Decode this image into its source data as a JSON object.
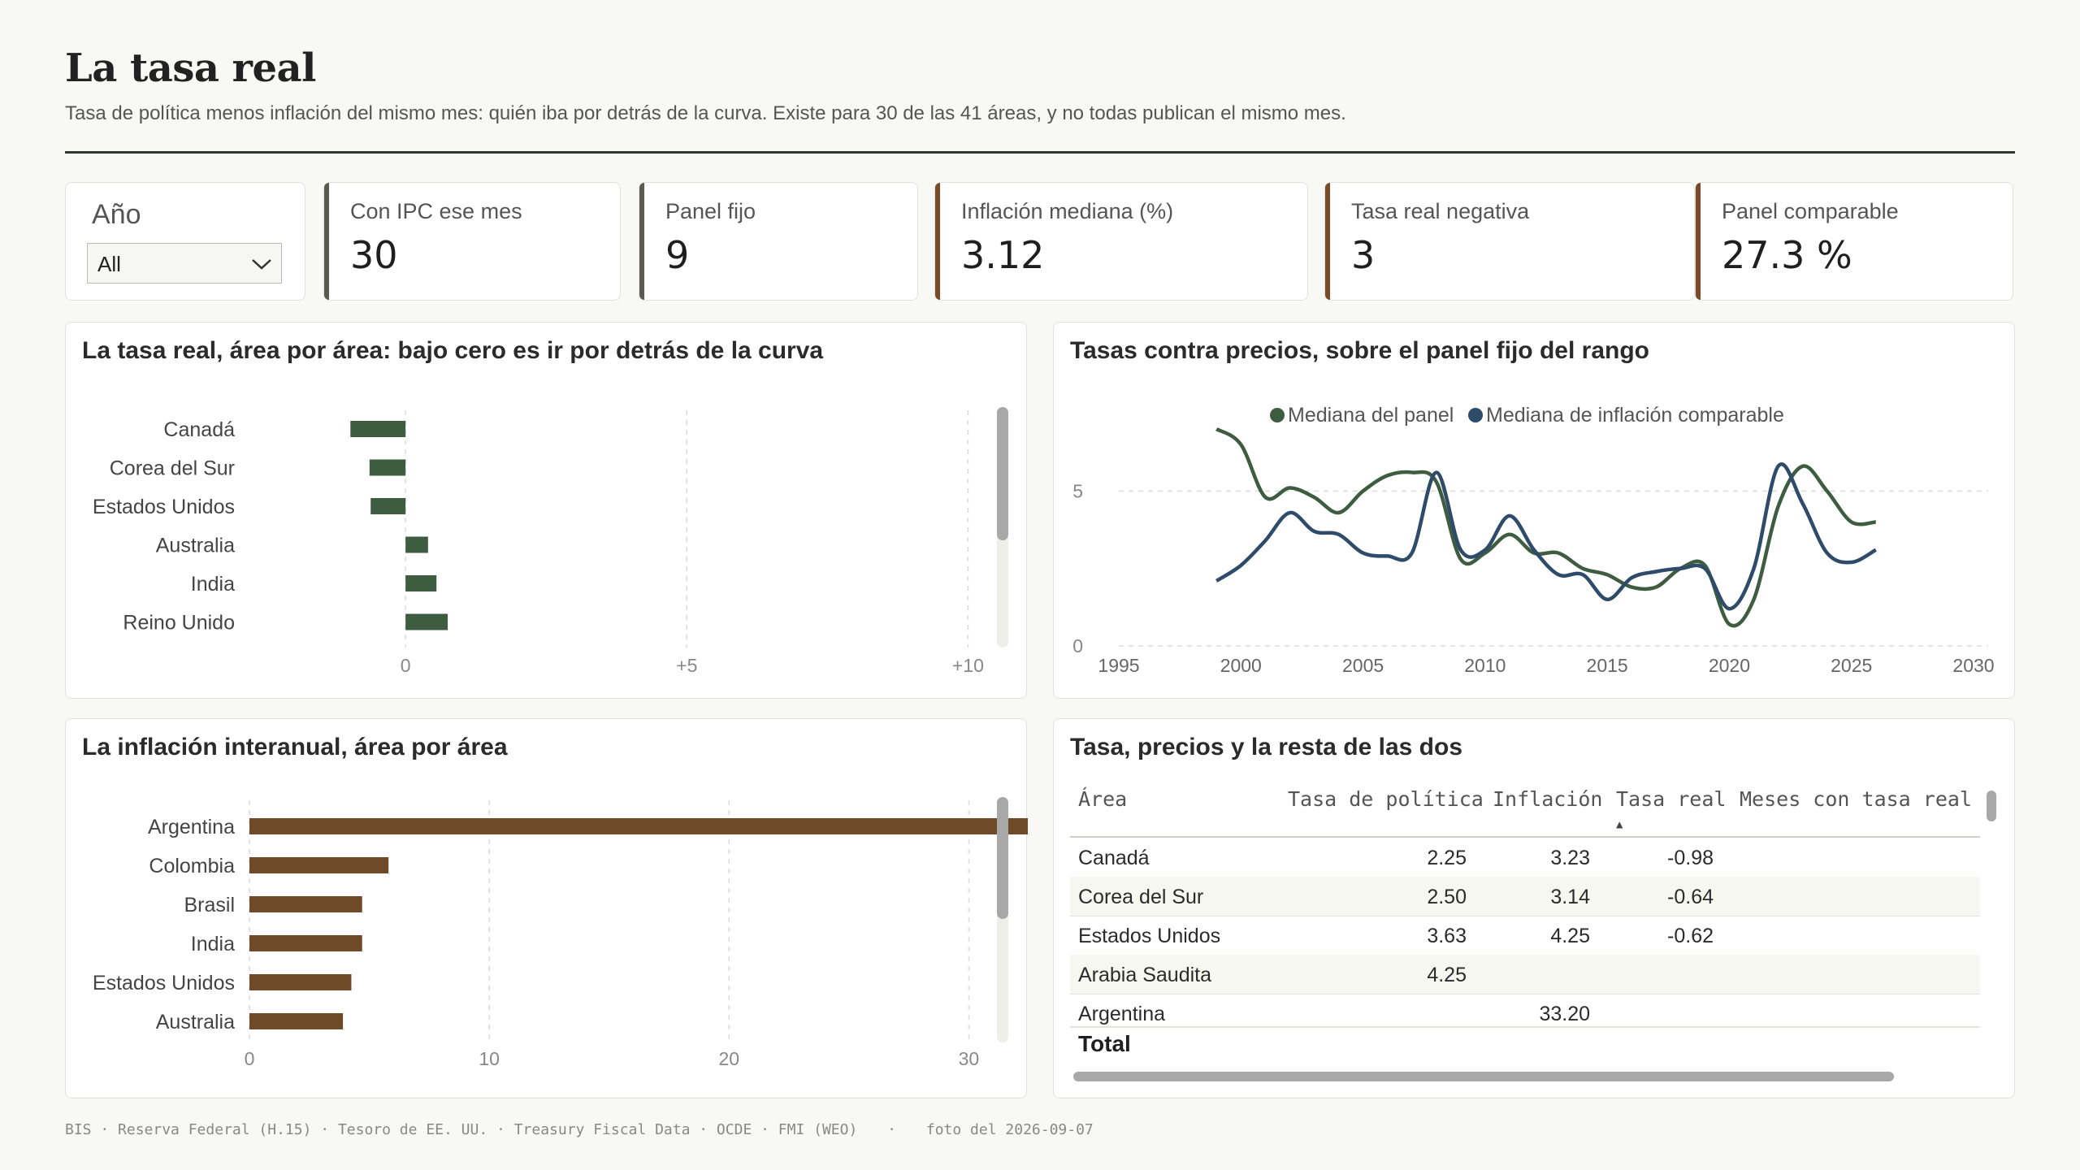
{
  "header": {
    "title": "La tasa real",
    "subtitle": "Tasa de política menos inflación del mismo mes: quién iba por detrás de la curva. Existe para 30 de las 41 áreas, y no todas publican el mismo mes."
  },
  "filter": {
    "label": "Año",
    "selected": "All"
  },
  "kpis": [
    {
      "label": "Con IPC ese mes",
      "value": "30",
      "color": "#5a5a52"
    },
    {
      "label": "Panel fijo",
      "value": "9",
      "color": "#5a5a52"
    },
    {
      "label": "Inflación mediana (%)",
      "value": "3.12",
      "color": "#7a4a28"
    },
    {
      "label": "Tasa real negativa",
      "value": "3",
      "color": "#7a4a28"
    },
    {
      "label": "Panel comparable",
      "value": "27.3 %",
      "color": "#7a4a28"
    }
  ],
  "panels": {
    "real_rate": {
      "title": "La tasa real, área por área: bajo cero es ir por detrás de la curva"
    },
    "rates_vs_prices": {
      "title": "Tasas contra precios, sobre el panel fijo del rango"
    },
    "inflation": {
      "title": "La inflación interanual, área por área"
    },
    "table": {
      "title": "Tasa, precios y la resta de las dos"
    }
  },
  "chart_data": [
    {
      "type": "bar",
      "orientation": "horizontal",
      "categories": [
        "Canadá",
        "Corea del Sur",
        "Estados Unidos",
        "Australia",
        "India",
        "Reino Unido"
      ],
      "values": [
        -0.98,
        -0.64,
        -0.62,
        0.4,
        0.55,
        0.75
      ],
      "xlim": [
        -5,
        10.5
      ],
      "xticks": [
        "0",
        "+5",
        "+10"
      ],
      "xtick_values": [
        0,
        5,
        10
      ],
      "color": "#3e5c40"
    },
    {
      "type": "line",
      "series": [
        {
          "name": "Mediana del panel",
          "color": "#3e5c40",
          "x": [
            1999,
            2000,
            2001,
            2002,
            2003,
            2004,
            2005,
            2006,
            2007,
            2008,
            2009,
            2010,
            2011,
            2012,
            2013,
            2014,
            2015,
            2016,
            2017,
            2018,
            2019,
            2020,
            2021,
            2022,
            2023,
            2024,
            2025,
            2026
          ],
          "values": [
            7.0,
            6.5,
            4.8,
            5.1,
            4.8,
            4.3,
            5.0,
            5.5,
            5.6,
            5.3,
            2.8,
            3.0,
            3.6,
            3.0,
            3.0,
            2.5,
            2.3,
            1.9,
            1.9,
            2.5,
            2.6,
            0.7,
            1.5,
            4.5,
            5.8,
            5.0,
            4.0,
            4.0
          ]
        },
        {
          "name": "Mediana de inflación comparable",
          "color": "#2f4b6a",
          "x": [
            1999,
            2000,
            2001,
            2002,
            2003,
            2004,
            2005,
            2006,
            2007,
            2008,
            2009,
            2010,
            2011,
            2012,
            2013,
            2014,
            2015,
            2016,
            2017,
            2018,
            2019,
            2020,
            2021,
            2022,
            2023,
            2024,
            2025,
            2026
          ],
          "values": [
            2.1,
            2.6,
            3.4,
            4.3,
            3.7,
            3.6,
            3.0,
            2.9,
            3.0,
            5.6,
            3.1,
            3.1,
            4.2,
            3.1,
            2.3,
            2.3,
            1.5,
            2.2,
            2.4,
            2.5,
            2.5,
            1.2,
            2.5,
            5.8,
            4.6,
            3.0,
            2.7,
            3.1
          ]
        }
      ],
      "xlim": [
        1995,
        2030
      ],
      "ylim": [
        0,
        7.5
      ],
      "xticks": [
        "1995",
        "2000",
        "2005",
        "2010",
        "2015",
        "2020",
        "2025",
        "2030"
      ],
      "yticks": [
        "0",
        "5"
      ],
      "legend": "top-center",
      "grid": true
    },
    {
      "type": "bar",
      "orientation": "horizontal",
      "categories": [
        "Argentina",
        "Colombia",
        "Brasil",
        "India",
        "Estados Unidos",
        "Australia"
      ],
      "values": [
        33.2,
        5.8,
        4.7,
        4.7,
        4.25,
        3.9
      ],
      "xlim": [
        0,
        35
      ],
      "xticks": [
        "0",
        "10",
        "20",
        "30"
      ],
      "xtick_values": [
        0,
        10,
        20,
        30
      ],
      "color": "#6e4a28"
    },
    {
      "type": "table",
      "columns": [
        "Área",
        "Tasa de política",
        "Inflación",
        "Tasa real",
        "Meses con tasa real n"
      ],
      "sort_indicator": "▲",
      "rows": [
        [
          "Canadá",
          "2.25",
          "3.23",
          "-0.98",
          ""
        ],
        [
          "Corea del Sur",
          "2.50",
          "3.14",
          "-0.64",
          ""
        ],
        [
          "Estados Unidos",
          "3.63",
          "4.25",
          "-0.62",
          ""
        ],
        [
          "Arabia Saudita",
          "4.25",
          "",
          "",
          ""
        ],
        [
          "Argentina",
          "",
          "33.20",
          "",
          ""
        ]
      ],
      "total_label": "Total"
    }
  ],
  "footer": {
    "sources": "BIS · Reserva Federal (H.15) · Tesoro de EE. UU. · Treasury Fiscal Data · OCDE · FMI (WEO)",
    "separator": "·",
    "snapshot": "foto del 2026-09-07"
  }
}
